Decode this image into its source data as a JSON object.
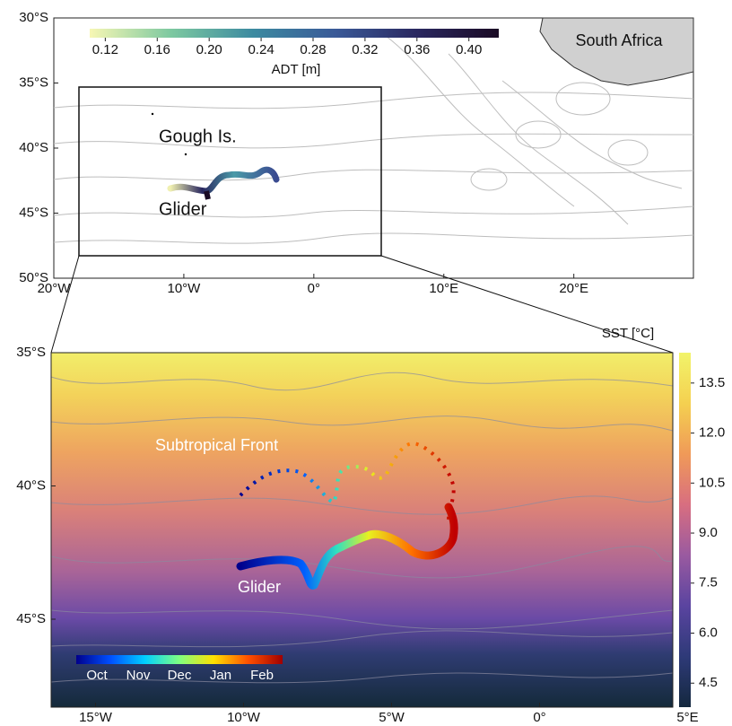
{
  "top_map": {
    "labels": {
      "land": "South Africa",
      "island": "Gough Is.",
      "track": "Glider"
    },
    "xlim": [
      -20,
      29.2
    ],
    "ylim": [
      -50,
      -30
    ],
    "xticks": [
      {
        "value": -20,
        "label": "20°W"
      },
      {
        "value": -10,
        "label": "10°W"
      },
      {
        "value": 0,
        "label": "0°"
      },
      {
        "value": 10,
        "label": "10°E"
      },
      {
        "value": 20,
        "label": "20°E"
      }
    ],
    "yticks": [
      {
        "value": -30,
        "label": "30°S"
      },
      {
        "value": -35,
        "label": "35°S"
      },
      {
        "value": -40,
        "label": "40°S"
      },
      {
        "value": -45,
        "label": "45°S"
      },
      {
        "value": -50,
        "label": "50°S"
      }
    ],
    "colorbar": {
      "label": "ADT [m]",
      "lim": [
        0.108,
        0.423
      ],
      "colors": [
        "#f7f7b4",
        "#7cc8a0",
        "#3c8aa0",
        "#3a5a98",
        "#2a2860",
        "#1a0a24"
      ],
      "ticks": [
        0.12,
        0.16,
        {
          "value": 0.2,
          "label": "0.20"
        },
        0.24,
        0.28,
        0.32,
        0.36,
        {
          "value": 0.4,
          "label": "0.40"
        }
      ]
    }
  },
  "bottom_map": {
    "labels": {
      "front": "Subtropical Front",
      "track": "Glider"
    },
    "xlim": [
      -16.5,
      4.5
    ],
    "ylim": [
      -48.3,
      -35
    ],
    "xticks": [
      {
        "value": -15,
        "label": "15°W"
      },
      {
        "value": -10,
        "label": "10°W"
      },
      {
        "value": -5,
        "label": "5°W"
      },
      {
        "value": 0,
        "label": "0°"
      },
      {
        "value": 5,
        "label": "5°E"
      }
    ],
    "yticks": [
      {
        "value": -35,
        "label": "35°S"
      },
      {
        "value": -40,
        "label": "40°S"
      },
      {
        "value": -45,
        "label": "45°S"
      }
    ],
    "colorbar": {
      "label": "SST [°C]",
      "lim": [
        3.78,
        14.41
      ],
      "colors": [
        "#14283e",
        "#2e3a78",
        "#5a44a0",
        "#9a5aa0",
        "#d86e80",
        "#f09a58",
        "#f4d050",
        "#f2f46a"
      ],
      "ticks": [
        4.5,
        {
          "value": 6,
          "label": "6.0"
        },
        7.5,
        {
          "value": 9,
          "label": "9.0"
        },
        10.5,
        {
          "value": 12,
          "label": "12.0"
        },
        13.5
      ]
    },
    "time_colorbar": {
      "categories": [
        "Oct",
        "Nov",
        "Dec",
        "Jan",
        "Feb"
      ],
      "colors": [
        "#00008c",
        "#0050ff",
        "#00d0ff",
        "#80ff80",
        "#ffe000",
        "#ff5000",
        "#a00000"
      ]
    }
  }
}
